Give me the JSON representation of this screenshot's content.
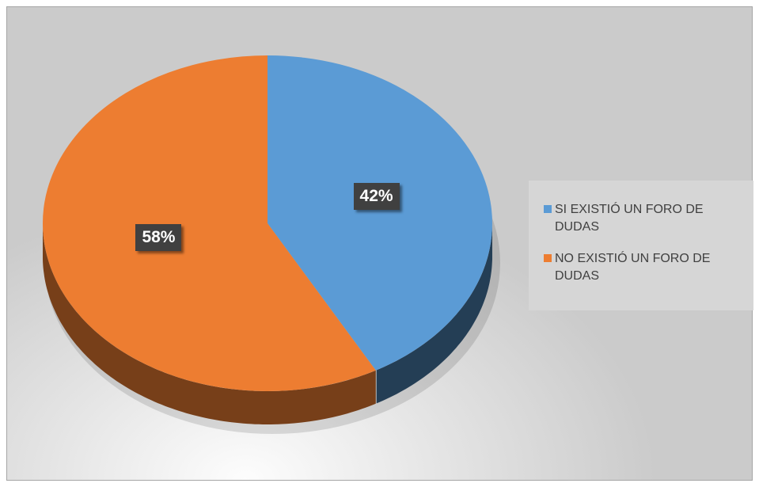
{
  "chart_data": {
    "type": "pie",
    "categories": [
      "SI EXISTIÓ UN FORO DE DUDAS",
      "NO EXISTIÓ UN FORO DE DUDAS"
    ],
    "values": [
      42,
      58
    ],
    "value_labels": [
      "42%",
      "58%"
    ],
    "colors": [
      "#5b9bd5",
      "#ed7d31"
    ],
    "legend": "right"
  }
}
